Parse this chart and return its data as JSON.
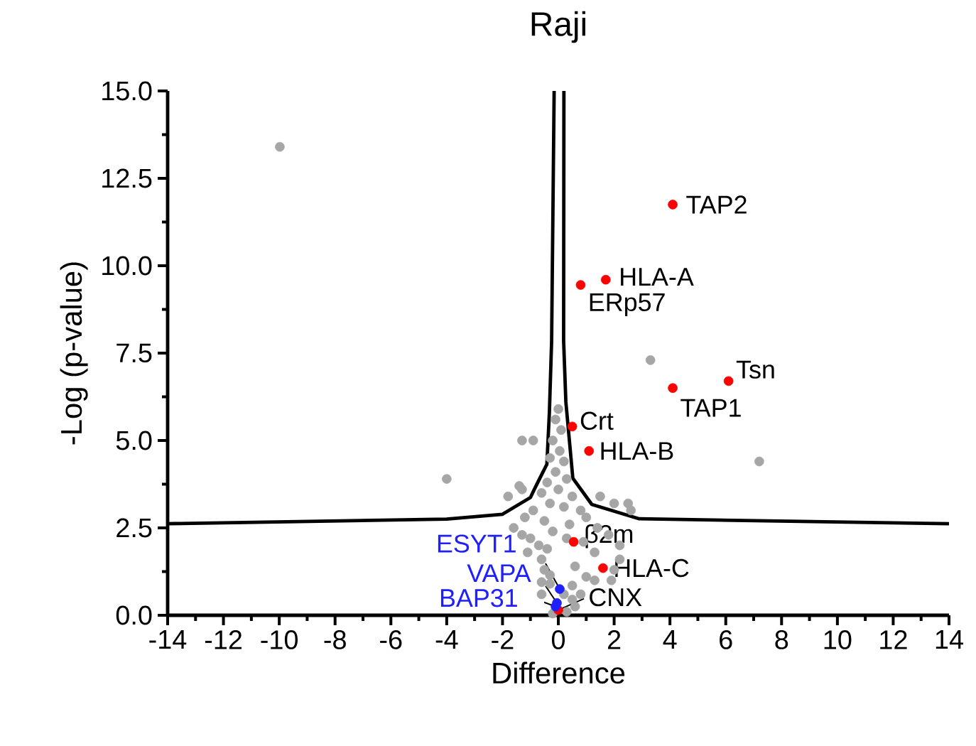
{
  "chart_data": {
    "type": "scatter",
    "title": "Raji",
    "xlabel": "Difference",
    "ylabel": "-Log  (p-value)",
    "xlim": [
      -14,
      14
    ],
    "ylim": [
      0,
      15
    ],
    "xticks": [
      -14,
      -12,
      -10,
      -8,
      -6,
      -4,
      -2,
      0,
      2,
      4,
      6,
      8,
      10,
      12,
      14
    ],
    "yticks": [
      {
        "value": 0,
        "label": "0.0"
      },
      {
        "value": 2.5,
        "label": "2.5"
      },
      {
        "value": 5,
        "label": "5.0"
      },
      {
        "value": 7.5,
        "label": "7.5"
      },
      {
        "value": 10,
        "label": "10.0"
      },
      {
        "value": 12.5,
        "label": "12.5"
      },
      {
        "value": 15,
        "label": "15.0"
      }
    ],
    "grid": false,
    "series": [
      {
        "marker": "circle",
        "color": "#a6a6a6",
        "x": [
          -9.98,
          7.2,
          3.3,
          -4.0,
          -1.3,
          -0.9,
          -1.4,
          -1.8,
          1.5,
          2.0,
          2.5,
          0,
          -0.1,
          0.1,
          -0.2,
          0.05,
          -0.3,
          0.2,
          -0.1,
          0.3,
          -0.4,
          0,
          -0.6,
          0.5,
          -0.3,
          0.2,
          -0.9,
          0.8,
          -1.2,
          1.0,
          -0.5,
          0.4,
          -1.3,
          2.6,
          -1.6,
          1.4,
          -0.2,
          -1.3,
          1.8,
          -1.0,
          0.3,
          0.9,
          -0.7,
          2.2,
          -0.4,
          -1.1,
          1.3,
          -0.6,
          2.2,
          0.6,
          -0.5,
          2.0,
          -0.3,
          1.0,
          -0.6,
          1.9,
          1.3,
          -0.3,
          0.5,
          -0.6,
          0.8,
          0.5,
          0.6,
          0.3,
          -0.2,
          0.2
        ],
        "values": [
          13.4,
          4.4,
          7.3,
          3.9,
          5.0,
          5.0,
          3.7,
          3.4,
          3.4,
          3.2,
          3.2,
          5.9,
          5.6,
          5.3,
          5.0,
          4.7,
          4.5,
          4.4,
          4.1,
          3.9,
          3.8,
          3.6,
          3.5,
          3.4,
          3.2,
          3.1,
          3.0,
          3.0,
          2.8,
          2.8,
          2.7,
          2.6,
          3.6,
          3.0,
          2.5,
          2.5,
          2.4,
          2.3,
          2.3,
          2.2,
          2.2,
          2.1,
          2.0,
          2.0,
          1.9,
          1.8,
          1.8,
          1.6,
          1.6,
          1.4,
          1.3,
          1.3,
          1.15,
          1.1,
          0.95,
          1.0,
          1.0,
          0.9,
          0.85,
          0.6,
          0.6,
          0.45,
          0.25,
          0.1,
          0.05,
          0.6
        ]
      },
      {
        "marker": "circle",
        "color": "#ff0000",
        "x": [
          4.1,
          1.7,
          0.8,
          4.1,
          6.1,
          0.5,
          1.1,
          0.55,
          1.6,
          0
        ],
        "values": [
          11.75,
          9.6,
          9.45,
          6.5,
          6.7,
          5.4,
          4.7,
          2.1,
          1.35,
          0.15
        ]
      },
      {
        "marker": "circle",
        "color": "#1f1fff",
        "x": [
          0.05,
          -0.05,
          -0.1
        ],
        "values": [
          0.75,
          0.35,
          0.25
        ]
      },
      {
        "type": "line",
        "marker": "none",
        "color": "#000000",
        "x": [
          -14,
          -4,
          -2,
          -1,
          -0.83,
          -0.41,
          -0.32,
          -0.24,
          -0.15
        ],
        "values": [
          2.62,
          2.75,
          2.89,
          3.37,
          3.65,
          4.32,
          5.81,
          7.85,
          15
        ]
      },
      {
        "type": "line",
        "marker": "none",
        "color": "#000000",
        "x": [
          0.2,
          0.19,
          0.27,
          0.52,
          1.2,
          2.9,
          14
        ],
        "values": [
          15,
          7.85,
          6.1,
          3.92,
          3.17,
          2.76,
          2.62
        ]
      }
    ],
    "annotations": [
      {
        "text": "TAP2",
        "x": 4.1,
        "y": 11.75
      },
      {
        "text": "HLA-A",
        "x": 1.7,
        "y": 9.6
      },
      {
        "text": "ERp57",
        "x": 0.8,
        "y": 9.45
      },
      {
        "text": "TAP1",
        "x": 4.1,
        "y": 6.5
      },
      {
        "text": "Tsn",
        "x": 6.1,
        "y": 6.7
      },
      {
        "text": "Crt",
        "x": 0.5,
        "y": 5.4
      },
      {
        "text": "HLA-B",
        "x": 1.1,
        "y": 4.7
      },
      {
        "text": "β2m",
        "x": 0.55,
        "y": 2.1
      },
      {
        "text": "HLA-C",
        "x": 1.6,
        "y": 1.35
      },
      {
        "text": "CNX",
        "x": 0,
        "y": 0.15
      },
      {
        "text": "ESYT1",
        "x": 0.05,
        "y": 0.75
      },
      {
        "text": "VAPA",
        "x": -0.05,
        "y": 0.35
      },
      {
        "text": "BAP31",
        "x": -0.1,
        "y": 0.25
      }
    ]
  }
}
